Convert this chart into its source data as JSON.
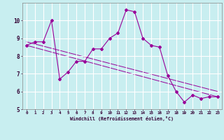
{
  "xlabel": "Windchill (Refroidissement éolien,°C)",
  "bg_color": "#c8eef0",
  "line_color": "#990099",
  "grid_color": "#ffffff",
  "x_hours": [
    0,
    1,
    2,
    3,
    4,
    5,
    6,
    7,
    8,
    9,
    10,
    11,
    12,
    13,
    14,
    15,
    16,
    17,
    18,
    19,
    20,
    21,
    22,
    23
  ],
  "y_data": [
    8.6,
    8.8,
    8.8,
    10.0,
    6.7,
    7.1,
    7.7,
    7.7,
    8.4,
    8.4,
    9.0,
    9.3,
    10.6,
    10.5,
    9.0,
    8.6,
    8.5,
    6.9,
    6.0,
    5.4,
    5.8,
    5.6,
    5.7,
    5.7
  ],
  "ylim": [
    5,
    11
  ],
  "xlim": [
    -0.5,
    23.5
  ],
  "yticks": [
    5,
    6,
    7,
    8,
    9,
    10
  ],
  "xticks": [
    0,
    1,
    2,
    3,
    4,
    5,
    6,
    7,
    8,
    9,
    10,
    11,
    12,
    13,
    14,
    15,
    16,
    17,
    18,
    19,
    20,
    21,
    22,
    23
  ],
  "trend1_x": [
    0,
    23
  ],
  "trend1_y": [
    8.6,
    5.7
  ],
  "trend2_x": [
    0,
    23
  ],
  "trend2_y": [
    8.8,
    6.0
  ]
}
